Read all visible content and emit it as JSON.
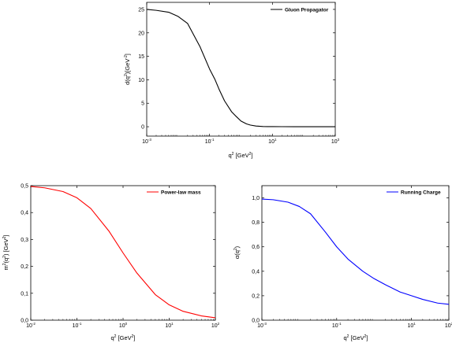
{
  "chart_data": [
    {
      "id": "gluon",
      "type": "line",
      "xscale": "log",
      "xlim": [
        0.001,
        1000
      ],
      "ylim": [
        -2,
        26.5
      ],
      "xticks": [
        {
          "base": "10",
          "exp": "-3",
          "value": 0.001
        },
        {
          "base": "10",
          "exp": "-1",
          "value": 0.1
        },
        {
          "base": "10",
          "exp": "1",
          "value": 10
        },
        {
          "base": "10",
          "exp": "3",
          "value": 1000
        }
      ],
      "yticks": [
        {
          "label": "0",
          "value": 0
        },
        {
          "label": "5",
          "value": 5
        },
        {
          "label": "10",
          "value": 10
        },
        {
          "label": "15",
          "value": 15
        },
        {
          "label": "20",
          "value": 20
        },
        {
          "label": "25",
          "value": 25
        }
      ],
      "xlabel": {
        "main": "q",
        "sup": "2",
        "rest": " [GeV",
        "sup2": "2",
        "end": "]"
      },
      "ylabel": {
        "main": "d(q",
        "sup": "2",
        "rest": ")[GeV",
        "sup2": "-2",
        "end": "]"
      },
      "legend": {
        "position": "top-right",
        "label": "Gluon Propagator"
      },
      "color": "#000000",
      "series": [
        {
          "name": "Gluon Propagator",
          "x": [
            0.001,
            0.002,
            0.005,
            0.01,
            0.02,
            0.05,
            0.1,
            0.15,
            0.2,
            0.3,
            0.5,
            0.7,
            1,
            1.5,
            2,
            3,
            5,
            7,
            10,
            20,
            50,
            100,
            1000
          ],
          "y": [
            25.0,
            24.8,
            24.4,
            23.5,
            22.0,
            17.0,
            12.3,
            10.0,
            8.0,
            5.5,
            3.2,
            2.2,
            1.2,
            0.6,
            0.35,
            0.15,
            0.05,
            0.03,
            0.02,
            0.01,
            0.0,
            0.0,
            0.0
          ]
        }
      ]
    },
    {
      "id": "mass",
      "type": "line",
      "xscale": "log",
      "xlim": [
        0.01,
        100
      ],
      "ylim": [
        0,
        0.5
      ],
      "xticks": [
        {
          "base": "10",
          "exp": "-2",
          "value": 0.01
        },
        {
          "base": "10",
          "exp": "-1",
          "value": 0.1
        },
        {
          "base": "10",
          "exp": "0",
          "value": 1
        },
        {
          "base": "10",
          "exp": "1",
          "value": 10
        },
        {
          "base": "10",
          "exp": "2",
          "value": 100
        }
      ],
      "yticks": [
        {
          "label": "0,0",
          "value": 0
        },
        {
          "label": "0,1",
          "value": 0.1
        },
        {
          "label": "0,2",
          "value": 0.2
        },
        {
          "label": "0,3",
          "value": 0.3
        },
        {
          "label": "0,4",
          "value": 0.4
        },
        {
          "label": "0,5",
          "value": 0.5
        }
      ],
      "xlabel": {
        "main": "q",
        "sup": "2",
        "rest": " [GeV",
        "sup2": "2",
        "end": "]"
      },
      "ylabel": {
        "main": "m",
        "sup": "2",
        "rest": "(q",
        "sup2": "2",
        "mid": ") [GeV",
        "sup3": "2",
        "end": "]"
      },
      "legend": {
        "position": "top-right",
        "label": "Power-law mass"
      },
      "color": "#ff0000",
      "series": [
        {
          "name": "Power-law mass",
          "x": [
            0.01,
            0.02,
            0.05,
            0.1,
            0.2,
            0.5,
            1,
            2,
            5,
            10,
            20,
            50,
            100
          ],
          "y": [
            0.497,
            0.492,
            0.478,
            0.455,
            0.415,
            0.33,
            0.25,
            0.175,
            0.095,
            0.057,
            0.033,
            0.016,
            0.009
          ]
        }
      ]
    },
    {
      "id": "charge",
      "type": "line",
      "xscale": "log",
      "xlim": [
        0.001,
        100
      ],
      "ylim": [
        0,
        1.1
      ],
      "xticks": [
        {
          "base": "10",
          "exp": "-3",
          "value": 0.001
        },
        {
          "base": "10",
          "exp": "-1",
          "value": 0.1
        },
        {
          "base": "10",
          "exp": "1",
          "value": 10
        },
        {
          "base": "10",
          "exp": "2",
          "value": 100
        }
      ],
      "yticks": [
        {
          "label": "0,0",
          "value": 0
        },
        {
          "label": "0,2",
          "value": 0.2
        },
        {
          "label": "0,4",
          "value": 0.4
        },
        {
          "label": "0,6",
          "value": 0.6
        },
        {
          "label": "0,8",
          "value": 0.8
        },
        {
          "label": "1,0",
          "value": 1.0
        }
      ],
      "xlabel": {
        "main": "q",
        "sup": "2",
        "rest": " [GeV",
        "sup2": "2",
        "end": "]"
      },
      "ylabel": {
        "main": "α(q",
        "sup": "2",
        "end": ")"
      },
      "legend": {
        "position": "top-right",
        "label": "Running Charge"
      },
      "color": "#0000ff",
      "series": [
        {
          "name": "Running Charge",
          "x": [
            0.001,
            0.002,
            0.005,
            0.01,
            0.02,
            0.05,
            0.1,
            0.2,
            0.5,
            1,
            2,
            5,
            10,
            20,
            50,
            100
          ],
          "y": [
            0.99,
            0.985,
            0.965,
            0.93,
            0.87,
            0.72,
            0.6,
            0.5,
            0.4,
            0.34,
            0.29,
            0.23,
            0.2,
            0.17,
            0.14,
            0.13
          ]
        }
      ]
    }
  ]
}
